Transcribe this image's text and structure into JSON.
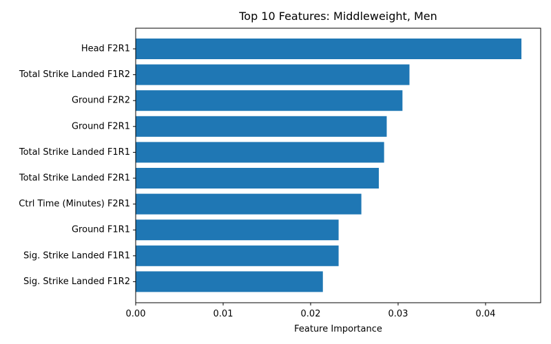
{
  "chart_data": {
    "type": "bar",
    "orientation": "horizontal",
    "title": "Top 10 Features: Middleweight, Men",
    "xlabel": "Feature Importance",
    "ylabel": "",
    "categories": [
      "Head F2R1",
      "Total Strike Landed F1R2",
      "Ground F2R2",
      "Ground F2R1",
      "Total Strike Landed F1R1",
      "Total Strike Landed F2R1",
      "Ctrl Time (Minutes) F2R1",
      "Ground F1R1",
      "Sig. Strike Landed F1R1",
      "Sig. Strike Landed F1R2"
    ],
    "values": [
      0.0441,
      0.0313,
      0.0305,
      0.0287,
      0.0284,
      0.0278,
      0.0258,
      0.0232,
      0.0232,
      0.0214
    ],
    "xlim": [
      0,
      0.0463
    ],
    "xticks": [
      0.0,
      0.01,
      0.02,
      0.03,
      0.04
    ],
    "xtick_labels": [
      "0.00",
      "0.01",
      "0.02",
      "0.03",
      "0.04"
    ],
    "bar_color": "#1f77b4",
    "grid": false
  }
}
